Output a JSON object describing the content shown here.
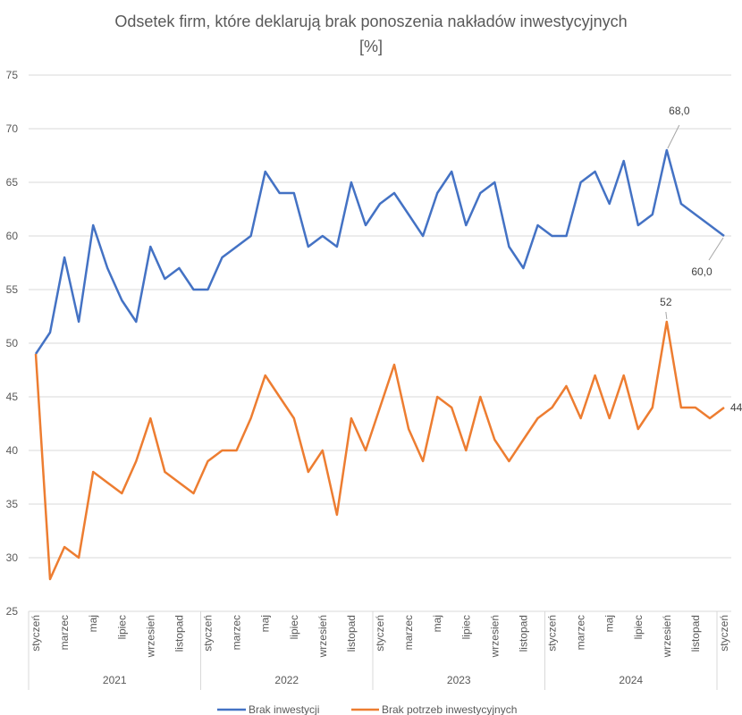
{
  "chart_data": {
    "type": "line",
    "title_line1": "Odsetek firm, które deklarują brak ponoszenia nakładów inwestycyjnych",
    "title_line2": "[%]",
    "ylim": [
      25,
      75
    ],
    "yticks": [
      25,
      30,
      35,
      40,
      45,
      50,
      55,
      60,
      65,
      70,
      75
    ],
    "grid": true,
    "legend_position": "bottom",
    "month_labels": [
      "styczeń",
      "marzec",
      "maj",
      "lipiec",
      "wrzesień",
      "listopad"
    ],
    "final_month_label": "styczeń",
    "years": [
      "2021",
      "2022",
      "2023",
      "2024"
    ],
    "n_points": 49,
    "series": [
      {
        "name": "Brak inwestycji",
        "color": "#4472C4",
        "values": [
          49,
          51,
          58,
          52,
          61,
          57,
          54,
          52,
          59,
          56,
          57,
          55,
          55,
          58,
          59,
          60,
          66,
          64,
          64,
          59,
          60,
          59,
          65,
          61,
          63,
          64,
          62,
          60,
          64,
          66,
          61,
          64,
          65,
          59,
          57,
          61,
          60,
          60,
          65,
          66,
          63,
          67,
          61,
          62,
          68,
          63,
          62,
          61,
          60
        ],
        "data_labels": [
          {
            "index": 44,
            "text": "68,0"
          },
          {
            "index": 48,
            "text": "60,0"
          }
        ]
      },
      {
        "name": "Brak potrzeb inwestycyjnych",
        "color": "#ED7D31",
        "values": [
          49,
          28,
          31,
          30,
          38,
          37,
          36,
          39,
          43,
          38,
          37,
          36,
          39,
          40,
          40,
          43,
          47,
          45,
          43,
          38,
          40,
          34,
          43,
          40,
          44,
          48,
          42,
          39,
          45,
          44,
          40,
          45,
          41,
          39,
          41,
          43,
          44,
          46,
          43,
          47,
          43,
          47,
          42,
          44,
          52,
          44,
          44,
          43,
          44
        ],
        "data_labels": [
          {
            "index": 44,
            "text": "52"
          },
          {
            "index": 48,
            "text": "44"
          }
        ]
      }
    ]
  }
}
